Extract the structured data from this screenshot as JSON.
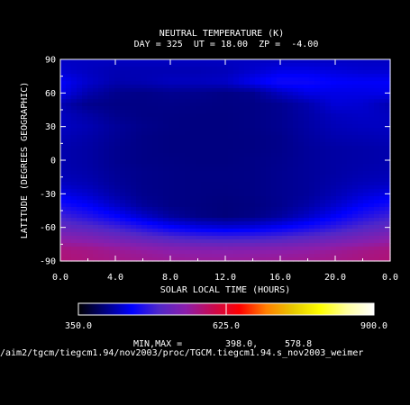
{
  "chart_data": {
    "type": "heatmap",
    "title": "NEUTRAL TEMPERATURE (K)",
    "subtitle": "DAY = 325  UT = 18.00  ZP =  -4.00",
    "xlabel": "SOLAR LOCAL TIME (HOURS)",
    "ylabel": "LATITUDE (DEGREES GEOGRAPHIC)",
    "xlim": [
      0,
      24
    ],
    "ylim": [
      -90,
      90
    ],
    "x_ticks": [
      "0.0",
      "4.0",
      "8.0",
      "12.0",
      "16.0",
      "20.0",
      "0.0"
    ],
    "x_tick_values": [
      0,
      4,
      8,
      12,
      16,
      20,
      24
    ],
    "y_ticks": [
      "90",
      "60",
      "30",
      "0",
      "-30",
      "-60",
      "-90"
    ],
    "y_tick_values": [
      90,
      60,
      30,
      0,
      -30,
      -60,
      -90
    ],
    "x": [
      0,
      2,
      4,
      6,
      8,
      10,
      12,
      14,
      16,
      18,
      20,
      22,
      24
    ],
    "y": [
      -90,
      -80,
      -70,
      -60,
      -50,
      -40,
      -30,
      -20,
      -10,
      0,
      10,
      20,
      30,
      40,
      50,
      60,
      70,
      80,
      90
    ],
    "z": [
      [
        579,
        575,
        570,
        566,
        562,
        560,
        560,
        561,
        563,
        566,
        570,
        575,
        579
      ],
      [
        574,
        570,
        562,
        555,
        548,
        545,
        544,
        545,
        548,
        552,
        560,
        568,
        574
      ],
      [
        548,
        540,
        528,
        515,
        503,
        495,
        492,
        494,
        500,
        510,
        522,
        535,
        548
      ],
      [
        515,
        505,
        490,
        470,
        452,
        440,
        435,
        438,
        448,
        462,
        480,
        500,
        515
      ],
      [
        488,
        472,
        452,
        430,
        412,
        402,
        398,
        402,
        412,
        428,
        448,
        470,
        488
      ],
      [
        462,
        448,
        428,
        410,
        402,
        400,
        398,
        400,
        405,
        415,
        430,
        448,
        462
      ],
      [
        440,
        430,
        415,
        405,
        402,
        401,
        400,
        402,
        406,
        410,
        420,
        432,
        440
      ],
      [
        425,
        420,
        410,
        404,
        402,
        401,
        401,
        402,
        406,
        410,
        416,
        422,
        425
      ],
      [
        420,
        416,
        408,
        404,
        402,
        401,
        401,
        402,
        406,
        410,
        414,
        418,
        420
      ],
      [
        418,
        414,
        406,
        402,
        401,
        400,
        400,
        402,
        405,
        410,
        414,
        416,
        418
      ],
      [
        418,
        414,
        406,
        402,
        400,
        400,
        400,
        401,
        404,
        410,
        414,
        416,
        418
      ],
      [
        422,
        416,
        408,
        402,
        400,
        400,
        400,
        401,
        404,
        412,
        418,
        420,
        422
      ],
      [
        426,
        420,
        410,
        404,
        401,
        400,
        400,
        402,
        406,
        414,
        422,
        425,
        426
      ],
      [
        425,
        415,
        405,
        402,
        401,
        400,
        400,
        402,
        406,
        415,
        425,
        428,
        425
      ],
      [
        420,
        405,
        402,
        402,
        403,
        402,
        401,
        402,
        407,
        418,
        435,
        432,
        420
      ],
      [
        442,
        418,
        405,
        403,
        406,
        405,
        402,
        405,
        425,
        440,
        440,
        440,
        442
      ],
      [
        448,
        430,
        418,
        420,
        425,
        425,
        428,
        445,
        460,
        458,
        450,
        448,
        448
      ],
      [
        432,
        425,
        420,
        420,
        420,
        420,
        422,
        430,
        440,
        440,
        436,
        432,
        432
      ],
      [
        426,
        426,
        426,
        426,
        426,
        426,
        426,
        426,
        426,
        426,
        426,
        426,
        426
      ]
    ],
    "colorbar": {
      "min": 350.0,
      "max": 900.0,
      "tick_labels": [
        "350.0",
        "625.0",
        "900.0"
      ],
      "tick_values": [
        350,
        625,
        900
      ],
      "stops": [
        "#000000",
        "#000080",
        "#0000ff",
        "#5028c8",
        "#8c1eaa",
        "#c80a50",
        "#ff0000",
        "#ff8000",
        "#e6c800",
        "#ffff00",
        "#ffffa0",
        "#ffffff"
      ]
    },
    "minmax_label": "MIN,MAX =",
    "min_value": "398.0,",
    "max_value": "578.8",
    "file_path": "/aim2/tgcm/tiegcm1.94/nov2003/proc/TGCM.tiegcm1.94.s_nov2003_weimer"
  }
}
